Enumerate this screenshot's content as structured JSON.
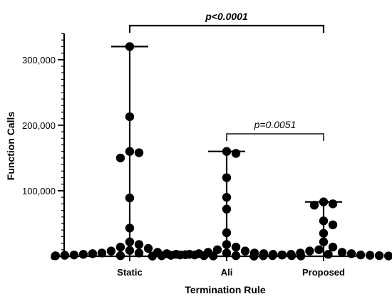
{
  "chart_data": {
    "type": "scatter",
    "subtype": "dot-plot-with-range",
    "xlabel": "Termination Rule",
    "ylabel": "Function Calls",
    "ylim": [
      0,
      340000
    ],
    "yticks": [
      0,
      100000,
      200000,
      300000
    ],
    "ytick_labels": [
      "0",
      "100,000",
      "200,000",
      "300,000"
    ],
    "categories": [
      "Static",
      "Ali",
      "Proposed"
    ],
    "series": [
      {
        "category": "Static",
        "values": [
          320000,
          213000,
          160000,
          158000,
          150000,
          89000,
          43000,
          22000,
          18000,
          14000,
          12000,
          9000,
          8000,
          6000,
          5000,
          5000,
          4000,
          4000,
          3000,
          3000,
          2500,
          2000,
          2000,
          1500,
          1000,
          1000,
          800,
          500
        ],
        "max": 320000
      },
      {
        "category": "Ali",
        "values": [
          160000,
          157000,
          120000,
          90000,
          72000,
          36000,
          18000,
          14000,
          10000,
          8000,
          6000,
          5000,
          5000,
          4000,
          4000,
          3000,
          3000,
          2000,
          2000,
          1500,
          1000,
          1000,
          800,
          500,
          300
        ],
        "max": 160000
      },
      {
        "category": "Proposed",
        "values": [
          83000,
          80000,
          78000,
          54000,
          48000,
          35000,
          22000,
          14000,
          10000,
          8000,
          6000,
          5000,
          4000,
          3000,
          3000,
          2000,
          2000,
          1500,
          1000,
          1000,
          800,
          500,
          300
        ],
        "max": 83000
      }
    ],
    "annotations": [
      {
        "from": "Static",
        "to": "Proposed",
        "text": "p<0.0001",
        "style": "bold-italic"
      },
      {
        "from": "Ali",
        "to": "Proposed",
        "text": "p=0.0051",
        "style": "italic"
      }
    ]
  }
}
